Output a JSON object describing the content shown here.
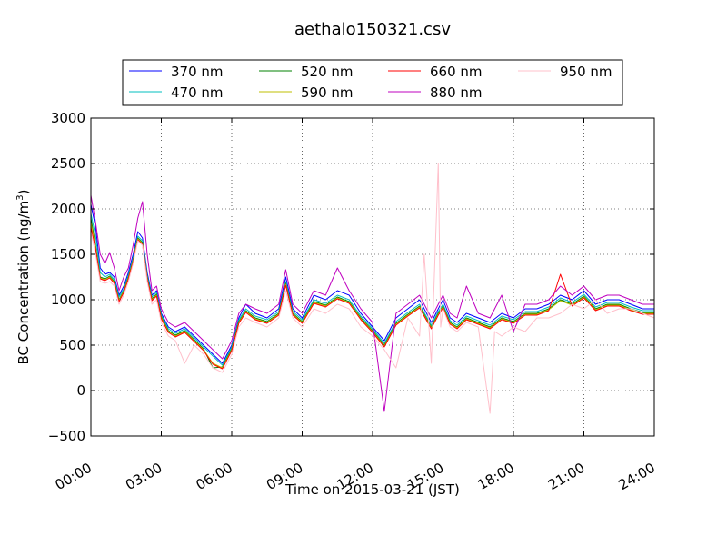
{
  "chart_data": {
    "type": "line",
    "title": "aethalo150321.csv",
    "xlabel": "Time on 2015-03-21 (JST)",
    "ylabel_main": "BC Concentration (ng/m",
    "ylabel_sup": "3",
    "ylabel_end": ")",
    "xlim": [
      0,
      24
    ],
    "ylim": [
      -500,
      3000
    ],
    "grid": true,
    "legend_placement": "top-center",
    "x_ticks": [
      0,
      3,
      6,
      9,
      12,
      15,
      18,
      21,
      24
    ],
    "x_tick_labels": [
      "00:00",
      "03:00",
      "06:00",
      "09:00",
      "12:00",
      "15:00",
      "18:00",
      "21:00",
      "24:00"
    ],
    "y_ticks": [
      -500,
      0,
      500,
      1000,
      1500,
      2000,
      2500,
      3000
    ],
    "y_tick_labels": [
      "−500",
      "0",
      "500",
      "1000",
      "1500",
      "2000",
      "2500",
      "3000"
    ],
    "series": [
      {
        "name": "370 nm",
        "color": "#0000ff",
        "x": [
          0,
          0.2,
          0.4,
          0.6,
          0.8,
          1.0,
          1.2,
          1.4,
          1.6,
          1.8,
          2.0,
          2.2,
          2.4,
          2.6,
          2.8,
          3.0,
          3.3,
          3.6,
          4.0,
          4.4,
          4.8,
          5.2,
          5.6,
          6.0,
          6.3,
          6.6,
          7.0,
          7.5,
          8.0,
          8.3,
          8.6,
          9.0,
          9.5,
          10.0,
          10.5,
          11.0,
          11.5,
          12.0,
          12.5,
          13.0,
          13.5,
          14.0,
          14.5,
          14.8,
          15.0,
          15.3,
          15.6,
          16.0,
          16.5,
          17.0,
          17.5,
          18.0,
          18.5,
          19.0,
          19.5,
          20.0,
          20.5,
          21.0,
          21.5,
          22.0,
          22.5,
          23.0,
          23.5,
          24.0
        ],
        "y": [
          2050,
          1800,
          1350,
          1280,
          1300,
          1250,
          1050,
          1150,
          1300,
          1500,
          1750,
          1680,
          1300,
          1050,
          1100,
          850,
          700,
          650,
          700,
          600,
          500,
          400,
          300,
          500,
          800,
          950,
          850,
          800,
          900,
          1250,
          900,
          800,
          1050,
          1000,
          1100,
          1050,
          850,
          700,
          550,
          800,
          900,
          1000,
          750,
          900,
          1000,
          800,
          750,
          850,
          800,
          750,
          850,
          800,
          900,
          900,
          950,
          1050,
          1000,
          1100,
          950,
          1000,
          1000,
          950,
          900,
          900
        ]
      },
      {
        "name": "470 nm",
        "color": "#00bfbf",
        "x": [
          0,
          0.2,
          0.4,
          0.6,
          0.8,
          1.0,
          1.2,
          1.4,
          1.6,
          1.8,
          2.0,
          2.2,
          2.4,
          2.6,
          2.8,
          3.0,
          3.3,
          3.6,
          4.0,
          4.4,
          4.8,
          5.2,
          5.6,
          6.0,
          6.3,
          6.6,
          7.0,
          7.5,
          8.0,
          8.3,
          8.6,
          9.0,
          9.5,
          10.0,
          10.5,
          11.0,
          11.5,
          12.0,
          12.5,
          13.0,
          13.5,
          14.0,
          14.5,
          14.8,
          15.0,
          15.3,
          15.6,
          16.0,
          16.5,
          17.0,
          17.5,
          18.0,
          18.5,
          19.0,
          19.5,
          20.0,
          20.5,
          21.0,
          21.5,
          22.0,
          22.5,
          23.0,
          23.5,
          24.0
        ],
        "y": [
          1950,
          1700,
          1300,
          1250,
          1280,
          1220,
          1030,
          1120,
          1270,
          1460,
          1700,
          1650,
          1270,
          1030,
          1080,
          830,
          680,
          630,
          680,
          580,
          480,
          380,
          280,
          480,
          780,
          900,
          820,
          780,
          870,
          1200,
          870,
          780,
          1000,
          960,
          1050,
          1000,
          820,
          680,
          520,
          760,
          860,
          950,
          720,
          870,
          950,
          770,
          720,
          820,
          770,
          720,
          820,
          780,
          870,
          870,
          920,
          1020,
          970,
          1060,
          920,
          970,
          970,
          920,
          880,
          880
        ]
      },
      {
        "name": "520 nm",
        "color": "#008000",
        "x": [
          0,
          0.2,
          0.4,
          0.6,
          0.8,
          1.0,
          1.2,
          1.4,
          1.6,
          1.8,
          2.0,
          2.2,
          2.4,
          2.6,
          2.8,
          3.0,
          3.3,
          3.6,
          4.0,
          4.4,
          4.8,
          5.2,
          5.6,
          6.0,
          6.3,
          6.6,
          7.0,
          7.5,
          8.0,
          8.3,
          8.6,
          9.0,
          9.5,
          10.0,
          10.5,
          11.0,
          11.5,
          12.0,
          12.5,
          13.0,
          13.5,
          14.0,
          14.5,
          14.8,
          15.0,
          15.3,
          15.6,
          16.0,
          16.5,
          17.0,
          17.5,
          18.0,
          18.5,
          19.0,
          19.5,
          20.0,
          20.5,
          21.0,
          21.5,
          22.0,
          22.5,
          23.0,
          23.5,
          24.0
        ],
        "y": [
          1900,
          1600,
          1250,
          1230,
          1260,
          1200,
          1000,
          1100,
          1250,
          1440,
          1680,
          1630,
          1250,
          1010,
          1060,
          810,
          660,
          610,
          660,
          560,
          460,
          250,
          260,
          460,
          760,
          880,
          800,
          760,
          850,
          1180,
          850,
          760,
          980,
          940,
          1030,
          980,
          800,
          660,
          500,
          740,
          840,
          930,
          700,
          850,
          930,
          750,
          700,
          800,
          750,
          700,
          800,
          760,
          850,
          850,
          900,
          1000,
          950,
          1040,
          900,
          950,
          950,
          900,
          860,
          860
        ]
      },
      {
        "name": "590 nm",
        "color": "#bfbf00",
        "x": [
          0,
          0.2,
          0.4,
          0.6,
          0.8,
          1.0,
          1.2,
          1.4,
          1.6,
          1.8,
          2.0,
          2.2,
          2.4,
          2.6,
          2.8,
          3.0,
          3.3,
          3.6,
          4.0,
          4.4,
          4.8,
          5.2,
          5.6,
          6.0,
          6.3,
          6.6,
          7.0,
          7.5,
          8.0,
          8.3,
          8.6,
          9.0,
          9.5,
          10.0,
          10.5,
          11.0,
          11.5,
          12.0,
          12.5,
          13.0,
          13.5,
          14.0,
          14.5,
          14.8,
          15.0,
          15.3,
          15.6,
          16.0,
          16.5,
          17.0,
          17.5,
          18.0,
          18.5,
          19.0,
          19.5,
          20.0,
          20.5,
          21.0,
          21.5,
          22.0,
          22.5,
          23.0,
          23.5,
          24.0
        ],
        "y": [
          1850,
          1580,
          1240,
          1220,
          1250,
          1190,
          990,
          1090,
          1240,
          1430,
          1670,
          1620,
          1240,
          1000,
          1050,
          800,
          650,
          600,
          650,
          550,
          450,
          300,
          250,
          450,
          750,
          870,
          790,
          750,
          840,
          1170,
          840,
          750,
          970,
          930,
          1020,
          970,
          790,
          650,
          490,
          730,
          830,
          920,
          690,
          840,
          920,
          740,
          690,
          790,
          740,
          690,
          790,
          750,
          840,
          840,
          890,
          990,
          940,
          1030,
          890,
          940,
          940,
          890,
          850,
          850
        ]
      },
      {
        "name": "660 nm",
        "color": "#ff0000",
        "x": [
          0,
          0.2,
          0.4,
          0.6,
          0.8,
          1.0,
          1.2,
          1.4,
          1.6,
          1.8,
          2.0,
          2.2,
          2.4,
          2.6,
          2.8,
          3.0,
          3.3,
          3.6,
          4.0,
          4.4,
          4.8,
          5.2,
          5.6,
          6.0,
          6.3,
          6.6,
          7.0,
          7.5,
          8.0,
          8.3,
          8.6,
          9.0,
          9.5,
          10.0,
          10.5,
          11.0,
          11.5,
          12.0,
          12.5,
          13.0,
          13.5,
          14.0,
          14.5,
          14.8,
          15.0,
          15.3,
          15.6,
          16.0,
          16.5,
          17.0,
          17.5,
          18.0,
          18.5,
          19.0,
          19.5,
          20.0,
          20.5,
          21.0,
          21.5,
          22.0,
          22.5,
          23.0,
          23.5,
          24.0
        ],
        "y": [
          1800,
          1560,
          1230,
          1210,
          1240,
          1180,
          980,
          1080,
          1230,
          1420,
          1660,
          1610,
          1230,
          990,
          1040,
          790,
          640,
          590,
          640,
          540,
          440,
          290,
          240,
          440,
          740,
          860,
          780,
          740,
          830,
          1160,
          830,
          740,
          960,
          920,
          1010,
          960,
          780,
          640,
          480,
          720,
          820,
          910,
          680,
          830,
          910,
          730,
          680,
          780,
          730,
          680,
          780,
          740,
          830,
          830,
          880,
          1280,
          930,
          1020,
          880,
          930,
          930,
          880,
          840,
          840
        ]
      },
      {
        "name": "880 nm",
        "color": "#bf00bf",
        "x": [
          0,
          0.2,
          0.4,
          0.6,
          0.8,
          1.0,
          1.2,
          1.4,
          1.6,
          1.8,
          2.0,
          2.2,
          2.4,
          2.6,
          2.8,
          3.0,
          3.3,
          3.6,
          4.0,
          4.4,
          4.8,
          5.2,
          5.6,
          6.0,
          6.3,
          6.6,
          7.0,
          7.5,
          8.0,
          8.3,
          8.6,
          9.0,
          9.5,
          10.0,
          10.5,
          11.0,
          11.5,
          12.0,
          12.5,
          13.0,
          13.5,
          14.0,
          14.5,
          14.8,
          15.0,
          15.3,
          15.6,
          16.0,
          16.5,
          17.0,
          17.5,
          18.0,
          18.5,
          19.0,
          19.5,
          20.0,
          20.5,
          21.0,
          21.5,
          22.0,
          22.5,
          23.0,
          23.5,
          24.0
        ],
        "y": [
          2150,
          1850,
          1500,
          1400,
          1520,
          1350,
          1100,
          1250,
          1350,
          1600,
          1900,
          2080,
          1500,
          1100,
          1150,
          900,
          750,
          700,
          750,
          650,
          550,
          450,
          350,
          550,
          850,
          950,
          900,
          850,
          950,
          1330,
          950,
          850,
          1100,
          1050,
          1350,
          1100,
          900,
          750,
          -230,
          850,
          950,
          1050,
          800,
          950,
          1050,
          850,
          800,
          1150,
          850,
          800,
          1050,
          650,
          950,
          950,
          1000,
          1150,
          1050,
          1150,
          1000,
          1050,
          1050,
          1000,
          950,
          950
        ]
      },
      {
        "name": "950 nm",
        "color": "#ffc0cb",
        "x": [
          0,
          0.2,
          0.4,
          0.6,
          0.8,
          1.0,
          1.2,
          1.4,
          1.6,
          1.8,
          2.0,
          2.2,
          2.4,
          2.6,
          2.8,
          3.0,
          3.3,
          3.6,
          4.0,
          4.4,
          4.8,
          5.2,
          5.6,
          6.0,
          6.3,
          6.6,
          7.0,
          7.5,
          8.0,
          8.3,
          8.6,
          9.0,
          9.5,
          10.0,
          10.5,
          11.0,
          11.5,
          12.0,
          12.5,
          13.0,
          13.5,
          14.0,
          14.2,
          14.5,
          14.8,
          14.9,
          15.0,
          15.3,
          15.6,
          16.0,
          16.5,
          17.0,
          17.2,
          17.5,
          18.0,
          18.5,
          19.0,
          19.5,
          20.0,
          20.5,
          21.0,
          21.5,
          22.0,
          22.5,
          23.0,
          23.5,
          24.0
        ],
        "y": [
          1750,
          1500,
          1200,
          1180,
          1200,
          1150,
          950,
          1050,
          1200,
          1400,
          1650,
          1600,
          1200,
          950,
          1000,
          750,
          600,
          550,
          300,
          500,
          400,
          250,
          200,
          400,
          700,
          800,
          750,
          700,
          800,
          1100,
          800,
          700,
          900,
          850,
          950,
          900,
          700,
          600,
          450,
          250,
          800,
          600,
          1500,
          300,
          2500,
          700,
          900,
          700,
          650,
          750,
          700,
          -250,
          650,
          600,
          700,
          650,
          800,
          800,
          850,
          950,
          900,
          1000,
          850,
          900,
          900,
          850,
          800
        ]
      }
    ]
  }
}
